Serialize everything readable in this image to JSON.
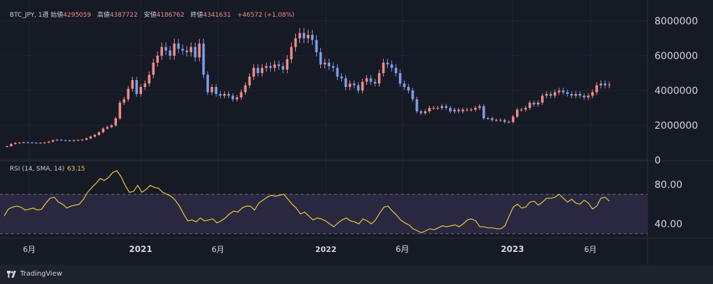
{
  "legend": {
    "symbol": "BTC_JPY, 1週",
    "open_label": "始値",
    "open": "4295059",
    "high_label": "高値",
    "high": "4387722",
    "low_label": "安値",
    "low": "4186762",
    "close_label": "終値",
    "close": "4341631",
    "change": "+46572 (+1.08%)"
  },
  "rsi_legend": {
    "label": "RSI (14, SMA, 14)",
    "value": "63.15"
  },
  "footer": {
    "brand": "TradingView"
  },
  "colors": {
    "background": "#161a25",
    "up": "#ef8a8a",
    "down": "#7f9be8",
    "rsi_line": "#e8c93b",
    "rsi_band": "#2a2840",
    "grid": "#232734",
    "axis_text": "#d1d4dc"
  },
  "chart_data": [
    {
      "type": "candlestick",
      "title": "BTC_JPY, 1週",
      "y_ticks": [
        "8000000",
        "6000000",
        "4000000",
        "2000000",
        "0"
      ],
      "ylim": [
        0,
        8800000
      ],
      "x_ticks": [
        "6月",
        "2021",
        "6月",
        "2022",
        "6月",
        "2023",
        "6月"
      ],
      "grid": true,
      "close_series": [
        800000,
        930000,
        990000,
        1000000,
        1020000,
        1010000,
        1000000,
        980000,
        990000,
        1010000,
        1060000,
        1140000,
        1170000,
        1140000,
        1130000,
        1100000,
        1140000,
        1150000,
        1170000,
        1250000,
        1350000,
        1450000,
        1600000,
        1810000,
        1900000,
        2000000,
        2400000,
        3300000,
        3500000,
        4100000,
        4600000,
        3800000,
        4200000,
        4400000,
        4900000,
        5600000,
        6000000,
        6500000,
        6300000,
        6000000,
        6700000,
        6400000,
        6300000,
        6200000,
        6500000,
        5900000,
        6700000,
        4900000,
        3900000,
        4200000,
        3800000,
        3700000,
        3800000,
        3700000,
        3500000,
        3600000,
        3900000,
        4300000,
        4800000,
        5300000,
        5000000,
        5300000,
        5400000,
        5300000,
        5500000,
        5400000,
        5200000,
        5800000,
        6500000,
        7000000,
        7300000,
        7000000,
        7200000,
        6900000,
        6200000,
        5500000,
        5600000,
        5400000,
        5300000,
        4800000,
        4700000,
        4200000,
        4400000,
        4300000,
        4000000,
        4500000,
        4700000,
        4500000,
        4400000,
        5000000,
        5600000,
        5500000,
        5300000,
        5000000,
        4400000,
        4200000,
        4000000,
        3500000,
        2800000,
        2700000,
        2800000,
        3000000,
        3000000,
        3000000,
        3100000,
        3000000,
        2800000,
        2900000,
        2800000,
        2900000,
        2900000,
        2900000,
        3000000,
        3100000,
        2400000,
        2400000,
        2300000,
        2300000,
        2300000,
        2200000,
        2200000,
        2500000,
        2900000,
        2900000,
        3000000,
        3300000,
        3200000,
        3300000,
        3700000,
        3800000,
        3700000,
        3900000,
        4000000,
        3900000,
        3800000,
        3700000,
        3800000,
        3700000,
        3600000,
        3700000,
        3900000,
        4300000,
        4400000,
        4300000,
        4341631
      ],
      "up_down_note": "red = up week, blue = down week"
    },
    {
      "type": "line",
      "title": "RSI (14, SMA, 14)",
      "y_ticks": [
        "80.00",
        "40.00"
      ],
      "ylim": [
        27,
        99
      ],
      "band": [
        30,
        70
      ],
      "values": [
        48,
        55,
        57,
        58,
        57,
        54,
        55,
        56,
        54,
        55,
        61,
        66,
        67,
        62,
        60,
        56,
        58,
        59,
        60,
        65,
        72,
        77,
        81,
        86,
        84,
        87,
        92,
        94,
        88,
        79,
        72,
        73,
        79,
        72,
        75,
        79,
        77,
        76,
        72,
        70,
        68,
        64,
        58,
        50,
        43,
        44,
        42,
        46,
        43,
        44,
        45,
        41,
        43,
        46,
        50,
        53,
        52,
        56,
        58,
        58,
        54,
        61,
        64,
        67,
        69,
        68,
        69,
        70,
        65,
        60,
        56,
        50,
        52,
        48,
        44,
        46,
        45,
        43,
        40,
        37,
        41,
        44,
        46,
        43,
        42,
        40,
        45,
        43,
        40,
        44,
        51,
        57,
        58,
        53,
        49,
        44,
        41,
        39,
        35,
        33,
        31,
        33,
        35,
        34,
        36,
        38,
        37,
        38,
        39,
        37,
        40,
        44,
        45,
        43,
        37,
        37,
        36,
        36,
        35,
        35,
        38,
        48,
        57,
        60,
        56,
        57,
        62,
        63,
        59,
        62,
        66,
        66,
        67,
        70,
        66,
        62,
        65,
        61,
        60,
        64,
        61,
        55,
        58,
        66,
        67,
        63.15
      ]
    }
  ]
}
